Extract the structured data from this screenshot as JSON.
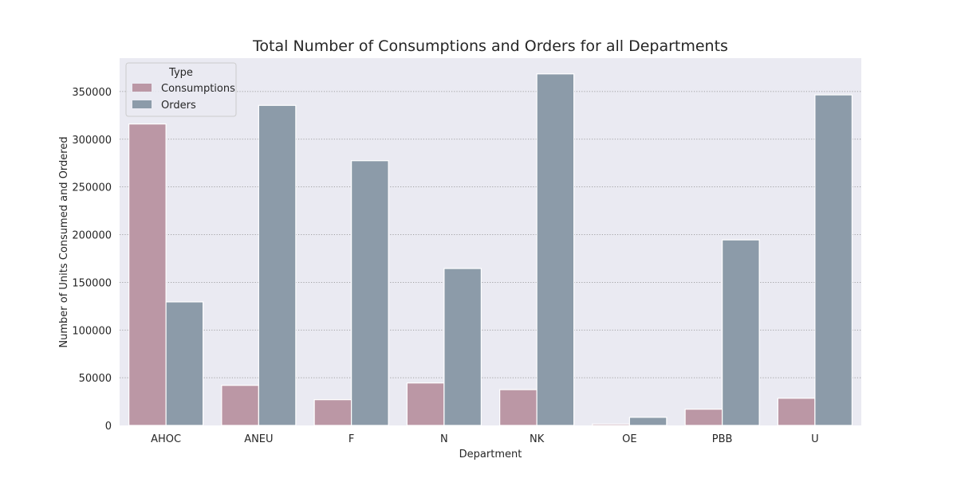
{
  "chart_data": {
    "type": "bar",
    "title": "Total Number of Consumptions and Orders for all Departments",
    "xlabel": "Department",
    "ylabel": "Number of Units Consumed and Ordered",
    "categories": [
      "AHOC",
      "ANEU",
      "F",
      "N",
      "NK",
      "OE",
      "PBB",
      "U"
    ],
    "series": [
      {
        "name": "Consumptions",
        "color": "#bb97a5",
        "values": [
          316000,
          42000,
          27000,
          44500,
          37500,
          1500,
          17000,
          28500
        ]
      },
      {
        "name": "Orders",
        "color": "#8c9ba9",
        "values": [
          129500,
          335500,
          277500,
          164500,
          368500,
          8500,
          194500,
          346500
        ]
      }
    ],
    "ylim": [
      0,
      385000
    ],
    "yticks": [
      0,
      50000,
      100000,
      150000,
      200000,
      250000,
      300000,
      350000
    ],
    "legend": {
      "title": "Type",
      "placement": "top-left"
    },
    "grid": "horizontal, dotted",
    "background": "#eaeaf2"
  }
}
